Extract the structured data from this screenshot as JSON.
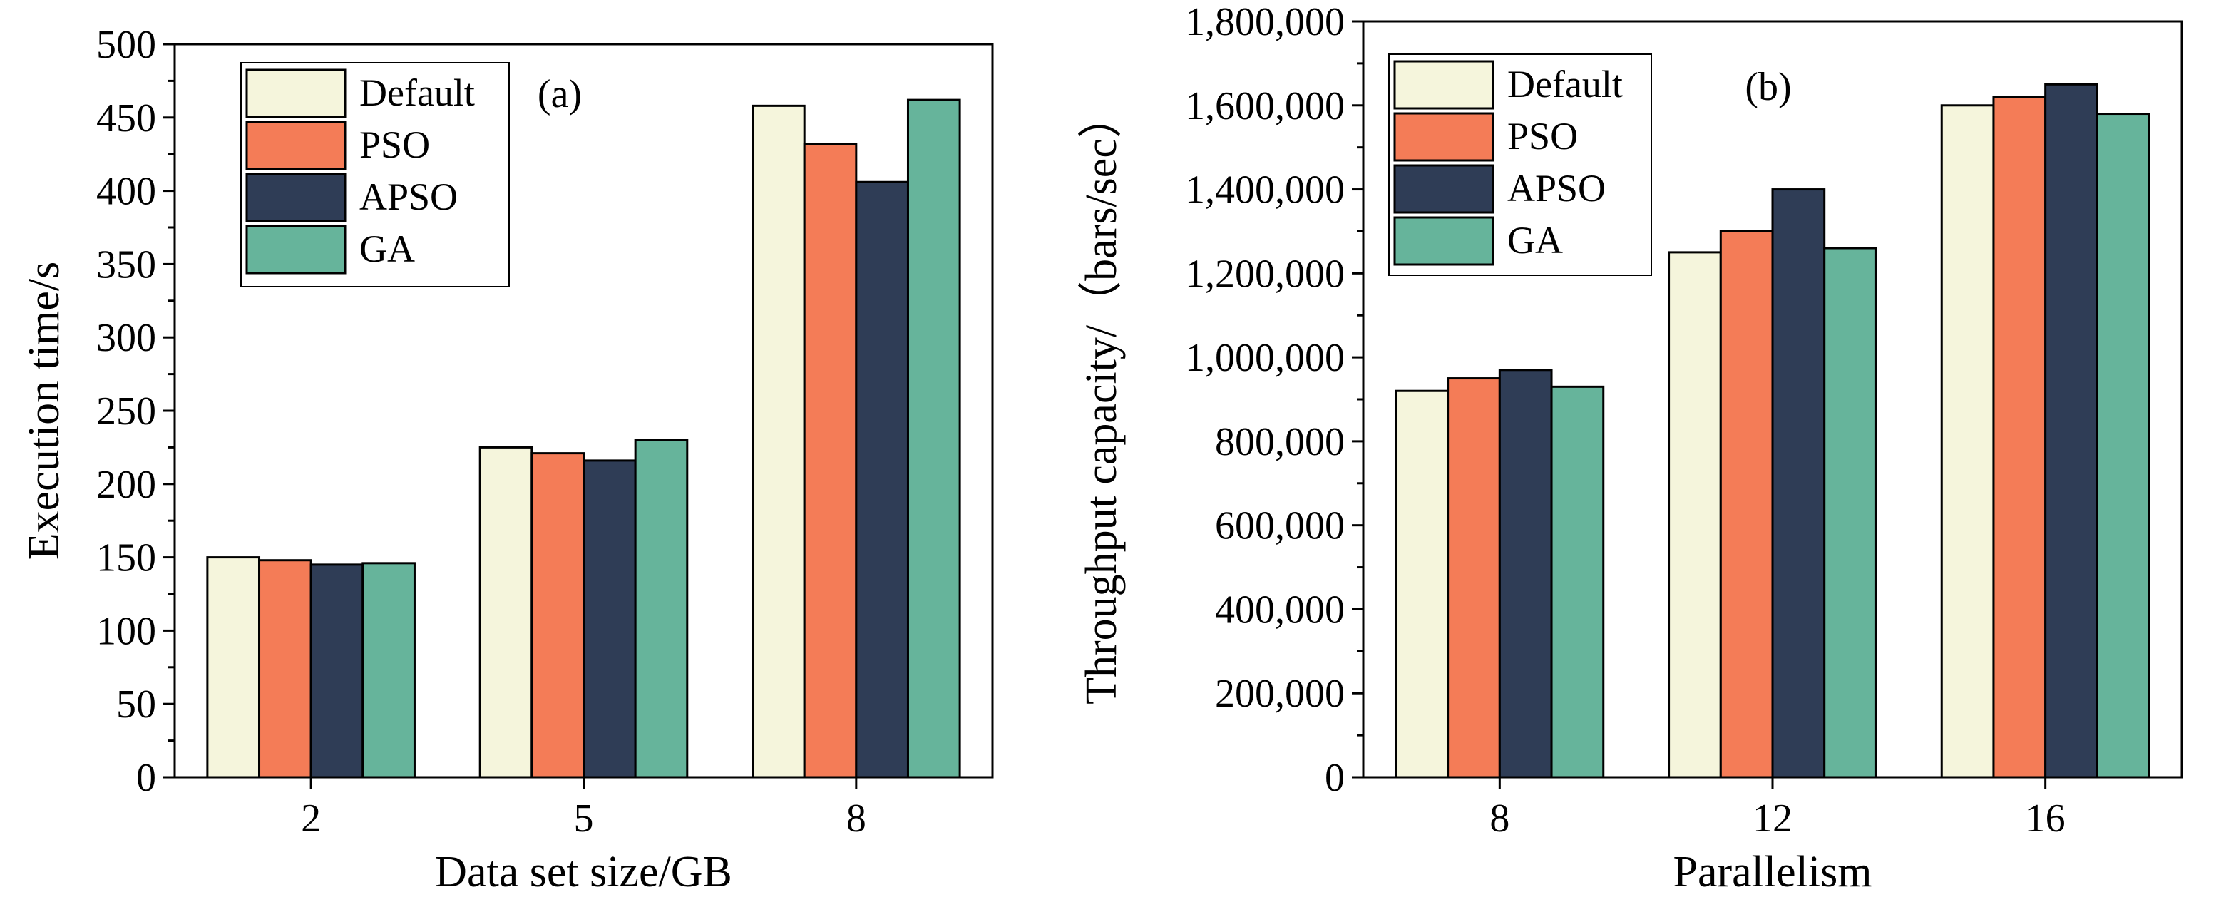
{
  "chart_data": [
    {
      "type": "bar",
      "panel_label": "(a)",
      "categories": [
        "2",
        "5",
        "8"
      ],
      "series": [
        {
          "name": "Default",
          "values": [
            150,
            225,
            458
          ]
        },
        {
          "name": "PSO",
          "values": [
            148,
            221,
            432
          ]
        },
        {
          "name": "APSO",
          "values": [
            145,
            216,
            406
          ]
        },
        {
          "name": "GA",
          "values": [
            146,
            230,
            462
          ]
        }
      ],
      "xlabel": "Data set size/GB",
      "ylabel": "Execution time/s",
      "ylim": [
        0,
        500
      ],
      "yticks": [
        0,
        50,
        100,
        150,
        200,
        250,
        300,
        350,
        400,
        450,
        500
      ],
      "ytick_labels": [
        "0",
        "50",
        "100",
        "150",
        "200",
        "250",
        "300",
        "350",
        "400",
        "450",
        "500"
      ],
      "legend_position": "top-left"
    },
    {
      "type": "bar",
      "panel_label": "(b)",
      "categories": [
        "8",
        "12",
        "16"
      ],
      "series": [
        {
          "name": "Default",
          "values": [
            920000,
            1250000,
            1600000
          ]
        },
        {
          "name": "PSO",
          "values": [
            950000,
            1300000,
            1620000
          ]
        },
        {
          "name": "APSO",
          "values": [
            970000,
            1400000,
            1650000
          ]
        },
        {
          "name": "GA",
          "values": [
            930000,
            1260000,
            1580000
          ]
        }
      ],
      "xlabel": "Parallelism",
      "ylabel": "Throughput capacity/（bars/sec）",
      "ylim": [
        0,
        1800000
      ],
      "yticks": [
        0,
        200000,
        400000,
        600000,
        800000,
        1000000,
        1200000,
        1400000,
        1600000,
        1800000
      ],
      "ytick_labels": [
        "0",
        "200,000",
        "400,000",
        "600,000",
        "800,000",
        "1,000,000",
        "1,200,000",
        "1,400,000",
        "1,600,000",
        "1,800,000"
      ],
      "legend_position": "top-left"
    }
  ],
  "colors": {
    "Default": "#f5f5dc",
    "PSO": "#f47c57",
    "APSO": "#2f3d56",
    "GA": "#66b49b"
  }
}
